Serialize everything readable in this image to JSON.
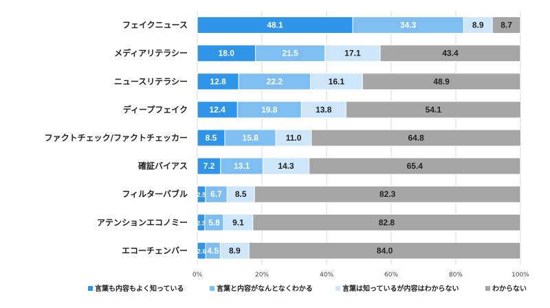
{
  "chart_data": {
    "type": "bar",
    "orientation": "horizontal",
    "stacked": true,
    "categories": [
      "フェイクニュース",
      "メディアリテラシー",
      "ニュースリテラシー",
      "ディープフェイク",
      "ファクトチェック/ファクトチェッカー",
      "確証バイアス",
      "フィルターバブル",
      "アテンションエコノミー",
      "エコーチェンバー"
    ],
    "series": [
      {
        "name": "言葉も内容もよく知っている",
        "color": "#2e95e8",
        "text_color": "#ffffff",
        "values": [
          48.1,
          18.0,
          12.8,
          12.4,
          8.5,
          7.2,
          2.5,
          2.3,
          2.6
        ]
      },
      {
        "name": "言葉と内容がなんとなくわかる",
        "color": "#7ebef1",
        "text_color": "#ffffff",
        "values": [
          34.3,
          21.5,
          22.2,
          19.8,
          15.8,
          13.1,
          6.7,
          5.8,
          4.5
        ]
      },
      {
        "name": "言葉は知っているが内容はわからない",
        "color": "#cde6fa",
        "text_color": "#222222",
        "values": [
          8.9,
          17.1,
          16.1,
          13.8,
          11.0,
          14.3,
          8.5,
          9.1,
          8.9
        ]
      },
      {
        "name": "わからない",
        "color": "#a6a6a6",
        "text_color": "#222222",
        "values": [
          8.7,
          43.4,
          48.9,
          54.1,
          64.8,
          65.4,
          82.3,
          82.8,
          84.0
        ]
      }
    ],
    "value_labels": [
      [
        "48.1",
        "34.3",
        "8.9",
        "8.7"
      ],
      [
        "18.0",
        "21.5",
        "17.1",
        "43.4"
      ],
      [
        "12.8",
        "22.2",
        "16.1",
        "48.9"
      ],
      [
        "12.4",
        "19.8",
        "13.8",
        "54.1"
      ],
      [
        "8.5",
        "15.8",
        "11.0",
        "64.8"
      ],
      [
        "7.2",
        "13.1",
        "14.3",
        "65.4"
      ],
      [
        "2.5",
        "6.7",
        "8.5",
        "82.3"
      ],
      [
        "2.3",
        "5.8",
        "9.1",
        "82.8"
      ],
      [
        "2.6",
        "4.5",
        "8.9",
        "84.0"
      ]
    ],
    "x_ticks": [
      "0%",
      "20%",
      "40%",
      "60%",
      "80%",
      "100%"
    ],
    "x_tick_values": [
      0,
      20,
      40,
      60,
      80,
      100
    ],
    "xlim": [
      0,
      100
    ],
    "grid": true,
    "legend_position": "bottom",
    "title": "",
    "xlabel": "",
    "ylabel": ""
  }
}
